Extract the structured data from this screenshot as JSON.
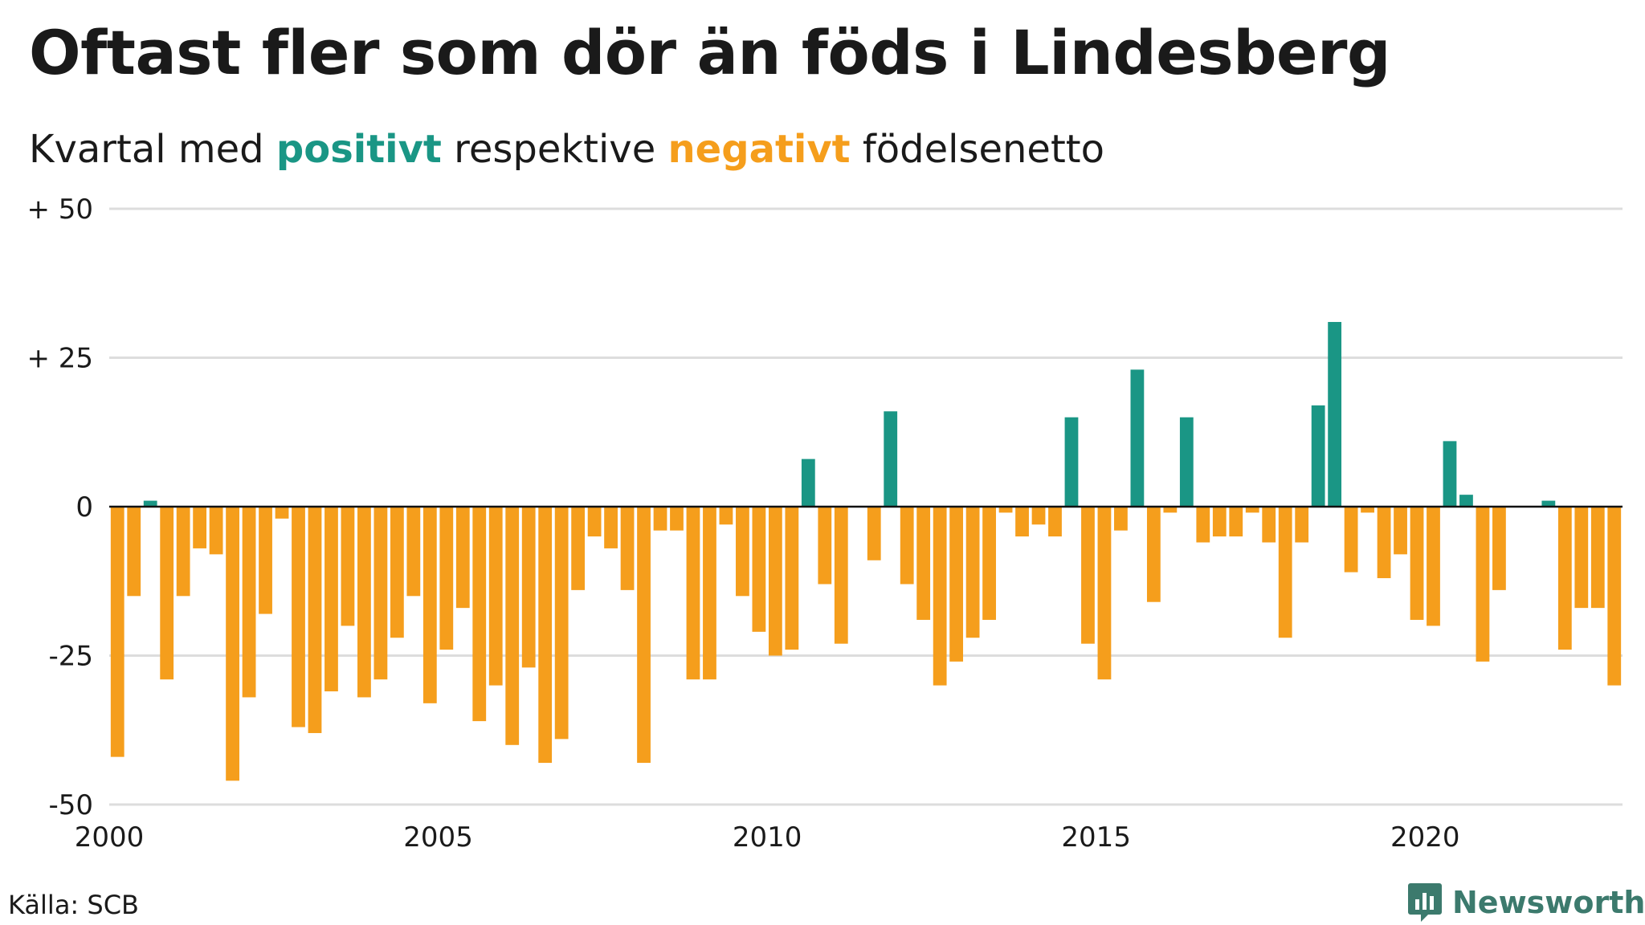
{
  "header": {
    "title": "Oftast fler som dör än föds i Lindesberg",
    "subtitle_pre": "Kvartal med ",
    "subtitle_pos": "positivt",
    "subtitle_mid": " respektive ",
    "subtitle_neg": "negativt",
    "subtitle_post": " födelsenetto"
  },
  "footer": {
    "source": "Källa: SCB",
    "logo_text": "Newsworthy",
    "logo_icon": "newsworthy-logo-icon"
  },
  "colors": {
    "positive": "#1a9685",
    "negative": "#f59e1c",
    "grid": "#dddddd",
    "zero_line": "#111111",
    "logo": "#3c7a6d"
  },
  "chart_data": {
    "type": "bar",
    "title": "Oftast fler som dör än föds i Lindesberg",
    "subtitle": "Kvartal med positivt respektive negativt födelsenetto",
    "ylim": [
      -50,
      50
    ],
    "yticks": [
      {
        "value": 50,
        "label": "+ 50"
      },
      {
        "value": 25,
        "label": "+ 25"
      },
      {
        "value": 0,
        "label": "0"
      },
      {
        "value": -25,
        "label": "-25"
      },
      {
        "value": -50,
        "label": "-50"
      }
    ],
    "xlim": [
      2000,
      2023
    ],
    "xticks": [
      {
        "value": 2000,
        "label": "2000"
      },
      {
        "value": 2005,
        "label": "2005"
      },
      {
        "value": 2010,
        "label": "2010"
      },
      {
        "value": 2015,
        "label": "2015"
      },
      {
        "value": 2020,
        "label": "2020"
      }
    ],
    "grid": true,
    "x_start": "2000 Q1",
    "bar_interval": "quarter",
    "values": [
      -42,
      -15,
      1,
      -29,
      -15,
      -7,
      -8,
      -46,
      -32,
      -18,
      -2,
      -37,
      -38,
      -31,
      -20,
      -32,
      -29,
      -22,
      -15,
      -33,
      -24,
      -17,
      -36,
      -30,
      -40,
      -27,
      -43,
      -39,
      -14,
      -5,
      -7,
      -14,
      -43,
      -4,
      -4,
      -29,
      -29,
      -3,
      -15,
      -21,
      -25,
      -24,
      8,
      -13,
      -23,
      0,
      -9,
      16,
      -13,
      -19,
      -30,
      -26,
      -22,
      -19,
      -1,
      -5,
      -3,
      -5,
      15,
      -23,
      -29,
      -4,
      23,
      -16,
      -1,
      15,
      -6,
      -5,
      -5,
      -1,
      -6,
      -22,
      -6,
      17,
      31,
      -11,
      -1,
      -12,
      -8,
      -19,
      -20,
      11,
      2,
      -26,
      -14,
      0,
      0,
      1,
      -24,
      -17,
      -17,
      -30
    ]
  }
}
